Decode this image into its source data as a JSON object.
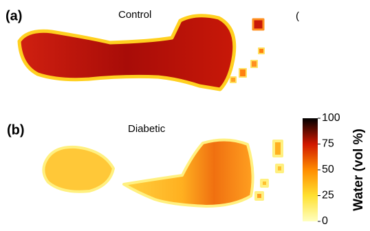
{
  "chart_data": {
    "type": "heatmap",
    "panels": [
      {
        "label": "(a)",
        "title": "Control"
      },
      {
        "label": "(b)",
        "title": "Diabetic"
      }
    ],
    "cut_text": "(",
    "colorbar": {
      "label": "Water (vol %)",
      "lim": [
        0,
        100
      ],
      "ticks": [
        0,
        25,
        50,
        75,
        100
      ],
      "colors": [
        "#ffffc0",
        "#ffe030",
        "#ff8c00",
        "#d01800",
        "#000000"
      ]
    }
  }
}
